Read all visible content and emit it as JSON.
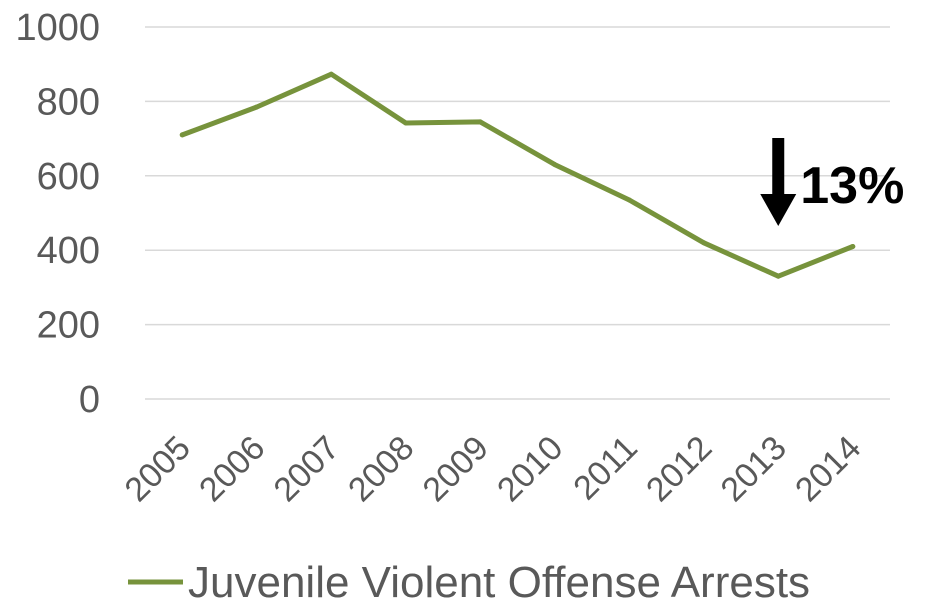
{
  "chart_data": {
    "type": "line",
    "title": "",
    "xlabel": "",
    "ylabel": "",
    "ylim": [
      0,
      1000
    ],
    "yticks": [
      0,
      200,
      400,
      600,
      800,
      1000
    ],
    "grid": "horizontal",
    "legend_position": "bottom",
    "categories": [
      "2005",
      "2006",
      "2007",
      "2008",
      "2009",
      "2010",
      "2011",
      "2012",
      "2013",
      "2014"
    ],
    "series": [
      {
        "name": "Juvenile Violent Offense Arrests",
        "color": "#77933C",
        "values": [
          710,
          785,
          873,
          742,
          745,
          630,
          535,
          420,
          330,
          410
        ]
      }
    ],
    "annotations": [
      {
        "text": "13%",
        "icon": "arrow-down-icon",
        "category": "2013"
      }
    ]
  }
}
